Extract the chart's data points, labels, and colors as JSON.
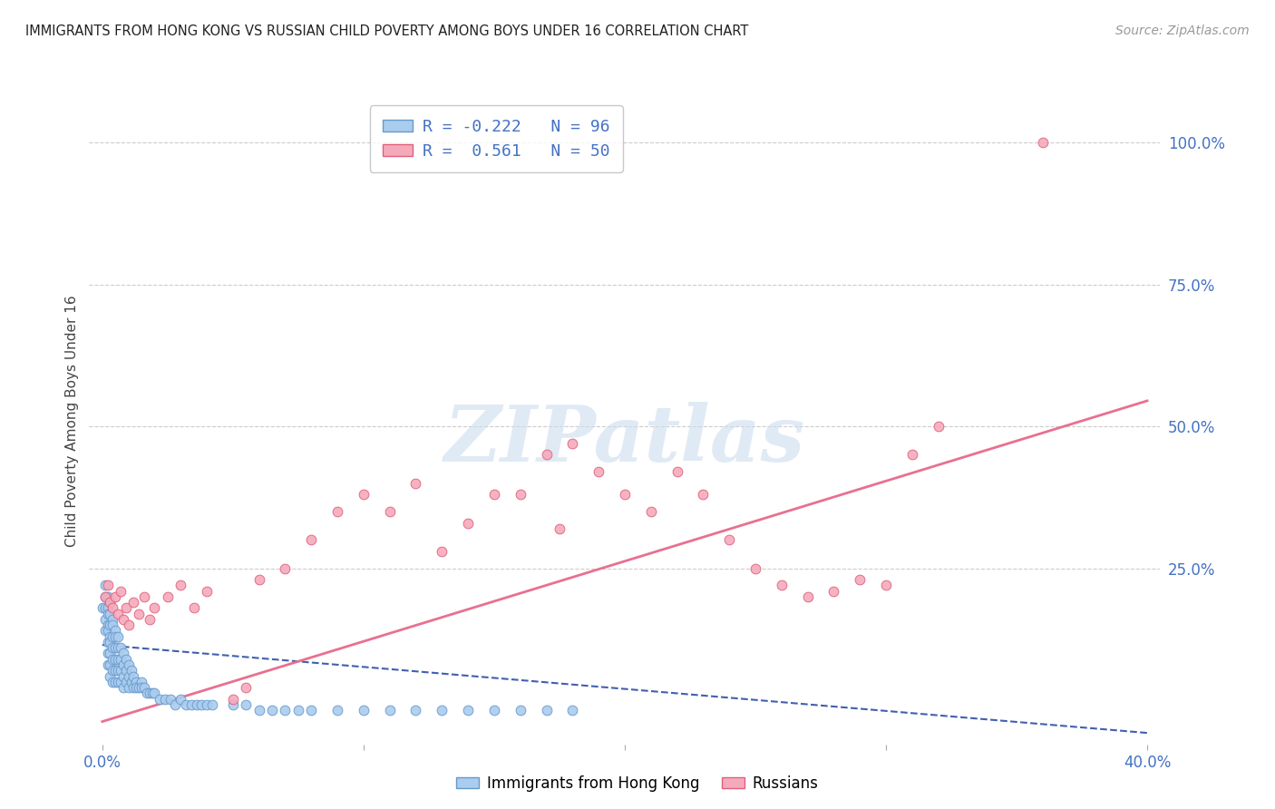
{
  "title": "IMMIGRANTS FROM HONG KONG VS RUSSIAN CHILD POVERTY AMONG BOYS UNDER 16 CORRELATION CHART",
  "source": "Source: ZipAtlas.com",
  "ylabel": "Child Poverty Among Boys Under 16",
  "xlim": [
    0.0,
    0.4
  ],
  "ylim": [
    0.0,
    1.05
  ],
  "x_tick_labels": [
    "0.0%",
    "",
    "",
    "",
    "40.0%"
  ],
  "x_tick_positions": [
    0.0,
    0.1,
    0.2,
    0.3,
    0.4
  ],
  "y_tick_labels": [
    "100.0%",
    "75.0%",
    "50.0%",
    "25.0%"
  ],
  "y_tick_positions": [
    1.0,
    0.75,
    0.5,
    0.25
  ],
  "grid_color": "#cccccc",
  "background_color": "#ffffff",
  "hk_color": "#aaccee",
  "hk_edge_color": "#6699cc",
  "russian_color": "#f5aabc",
  "russian_edge_color": "#e0607a",
  "hk_R": -0.222,
  "hk_N": 96,
  "russian_R": 0.561,
  "russian_N": 50,
  "watermark": "ZIPatlas",
  "hk_line_color": "#4060b0",
  "russian_line_color": "#e87090",
  "point_size": 60,
  "hk_scatter_x": [
    0.0,
    0.001,
    0.001,
    0.001,
    0.001,
    0.001,
    0.002,
    0.002,
    0.002,
    0.002,
    0.002,
    0.002,
    0.002,
    0.002,
    0.003,
    0.003,
    0.003,
    0.003,
    0.003,
    0.003,
    0.003,
    0.003,
    0.004,
    0.004,
    0.004,
    0.004,
    0.004,
    0.004,
    0.004,
    0.005,
    0.005,
    0.005,
    0.005,
    0.005,
    0.005,
    0.006,
    0.006,
    0.006,
    0.006,
    0.006,
    0.007,
    0.007,
    0.007,
    0.007,
    0.008,
    0.008,
    0.008,
    0.008,
    0.009,
    0.009,
    0.009,
    0.01,
    0.01,
    0.01,
    0.011,
    0.011,
    0.012,
    0.012,
    0.013,
    0.013,
    0.014,
    0.015,
    0.015,
    0.016,
    0.017,
    0.018,
    0.019,
    0.02,
    0.022,
    0.024,
    0.026,
    0.028,
    0.03,
    0.032,
    0.034,
    0.036,
    0.038,
    0.04,
    0.042,
    0.05,
    0.055,
    0.06,
    0.065,
    0.07,
    0.075,
    0.08,
    0.09,
    0.1,
    0.11,
    0.12,
    0.13,
    0.14,
    0.15,
    0.16,
    0.17,
    0.18
  ],
  "hk_scatter_y": [
    0.18,
    0.22,
    0.2,
    0.18,
    0.16,
    0.14,
    0.2,
    0.18,
    0.17,
    0.15,
    0.14,
    0.12,
    0.1,
    0.08,
    0.19,
    0.17,
    0.15,
    0.13,
    0.12,
    0.1,
    0.08,
    0.06,
    0.16,
    0.15,
    0.13,
    0.11,
    0.09,
    0.07,
    0.05,
    0.14,
    0.13,
    0.11,
    0.09,
    0.07,
    0.05,
    0.13,
    0.11,
    0.09,
    0.07,
    0.05,
    0.11,
    0.09,
    0.07,
    0.05,
    0.1,
    0.08,
    0.06,
    0.04,
    0.09,
    0.07,
    0.05,
    0.08,
    0.06,
    0.04,
    0.07,
    0.05,
    0.06,
    0.04,
    0.05,
    0.04,
    0.04,
    0.05,
    0.04,
    0.04,
    0.03,
    0.03,
    0.03,
    0.03,
    0.02,
    0.02,
    0.02,
    0.01,
    0.02,
    0.01,
    0.01,
    0.01,
    0.01,
    0.01,
    0.01,
    0.01,
    0.01,
    0.0,
    0.0,
    0.0,
    0.0,
    0.0,
    0.0,
    0.0,
    0.0,
    0.0,
    0.0,
    0.0,
    0.0,
    0.0,
    0.0,
    0.0
  ],
  "ru_scatter_x": [
    0.001,
    0.002,
    0.003,
    0.004,
    0.005,
    0.006,
    0.007,
    0.008,
    0.009,
    0.01,
    0.012,
    0.014,
    0.016,
    0.018,
    0.02,
    0.025,
    0.03,
    0.035,
    0.04,
    0.05,
    0.055,
    0.06,
    0.07,
    0.08,
    0.09,
    0.1,
    0.11,
    0.12,
    0.13,
    0.14,
    0.15,
    0.16,
    0.17,
    0.175,
    0.18,
    0.19,
    0.2,
    0.21,
    0.22,
    0.23,
    0.24,
    0.25,
    0.26,
    0.27,
    0.28,
    0.29,
    0.3,
    0.31,
    0.32,
    0.36
  ],
  "ru_scatter_y": [
    0.2,
    0.22,
    0.19,
    0.18,
    0.2,
    0.17,
    0.21,
    0.16,
    0.18,
    0.15,
    0.19,
    0.17,
    0.2,
    0.16,
    0.18,
    0.2,
    0.22,
    0.18,
    0.21,
    0.02,
    0.04,
    0.23,
    0.25,
    0.3,
    0.35,
    0.38,
    0.35,
    0.4,
    0.28,
    0.33,
    0.38,
    0.38,
    0.45,
    0.32,
    0.47,
    0.42,
    0.38,
    0.35,
    0.42,
    0.38,
    0.3,
    0.25,
    0.22,
    0.2,
    0.21,
    0.23,
    0.22,
    0.45,
    0.5,
    1.0
  ]
}
